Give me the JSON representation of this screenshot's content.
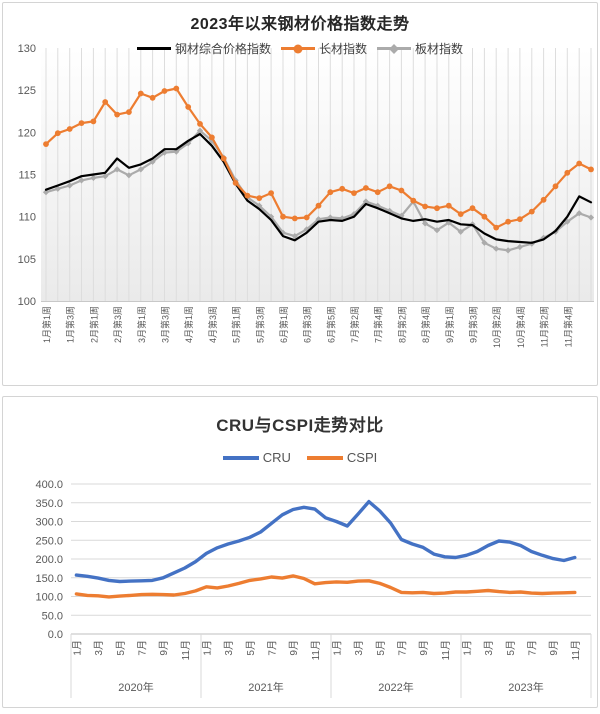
{
  "accent_colors": {
    "excel_orange": "#ED7D31",
    "excel_blue": "#4472C4",
    "series_black": "#000000",
    "series_gray": "#ABABAB",
    "axis_text": "#595959",
    "gridline": "#D9D9D9"
  },
  "chart_data": [
    {
      "type": "line",
      "title": "2023年以来钢材价格指数走势",
      "legend_position": "top",
      "grid": "vertical-only",
      "ylim": [
        100,
        130
      ],
      "yticks": [
        "130",
        "125",
        "120",
        "115",
        "110",
        "105",
        "100"
      ],
      "n_points": 47,
      "label_stride": 2,
      "categories": [
        "1月第1周",
        "1月第3周",
        "2月第1周",
        "2月第3周",
        "3月第1周",
        "3月第3周",
        "4月第1周",
        "4月第3周",
        "5月第1周",
        "5月第3周",
        "6月第1周",
        "6月第3周",
        "6月第5周",
        "7月第2周",
        "7月第4周",
        "8月第2周",
        "8月第4周",
        "9月第1周",
        "9月第3周",
        "10月第2周",
        "10月第4周",
        "11月第2周",
        "11月第4周"
      ],
      "series": [
        {
          "name": "钢材综合价格指数",
          "color": "#000000",
          "marker": "none",
          "values": [
            113.2,
            113.7,
            114.2,
            114.8,
            115.0,
            115.2,
            116.9,
            115.8,
            116.2,
            116.9,
            118.0,
            118.0,
            119.0,
            119.8,
            118.4,
            116.5,
            113.9,
            111.9,
            110.9,
            109.6,
            107.7,
            107.2,
            108.1,
            109.4,
            109.6,
            109.5,
            110.0,
            111.5,
            111.0,
            110.4,
            109.8,
            109.5,
            109.7,
            109.4,
            109.6,
            109.1,
            109.0,
            108.0,
            107.3,
            107.1,
            107.0,
            106.9,
            107.3,
            108.3,
            110.0,
            112.4,
            111.7
          ]
        },
        {
          "name": "长材指数",
          "color": "#ED7D31",
          "marker": "circle",
          "values": [
            118.6,
            119.9,
            120.4,
            121.1,
            121.3,
            123.6,
            122.1,
            122.4,
            124.6,
            124.1,
            124.9,
            125.2,
            123.0,
            121.0,
            119.4,
            116.9,
            114.0,
            112.5,
            112.2,
            112.8,
            110.0,
            109.8,
            109.9,
            111.3,
            112.9,
            113.3,
            112.8,
            113.4,
            112.9,
            113.6,
            113.1,
            111.9,
            111.2,
            111.0,
            111.3,
            110.3,
            111.0,
            110.0,
            108.7,
            109.4,
            109.7,
            110.6,
            112.0,
            113.6,
            115.2,
            116.3,
            115.6
          ]
        },
        {
          "name": "板材指数",
          "color": "#ABABAB",
          "marker": "diamond",
          "values": [
            112.9,
            113.3,
            113.7,
            114.3,
            114.6,
            114.8,
            115.6,
            114.9,
            115.6,
            116.5,
            117.6,
            117.7,
            118.7,
            120.2,
            119.0,
            117.0,
            114.3,
            112.3,
            111.3,
            110.0,
            108.1,
            107.7,
            108.5,
            109.7,
            109.9,
            109.8,
            110.3,
            111.8,
            111.3,
            110.7,
            110.1,
            111.8,
            109.2,
            108.4,
            109.3,
            108.2,
            109.1,
            106.9,
            106.2,
            106.0,
            106.4,
            106.8,
            107.5,
            108.2,
            109.4,
            110.4,
            109.9
          ]
        }
      ]
    },
    {
      "type": "line",
      "title": "CRU与CSPI走势对比",
      "legend_position": "top",
      "grid": "horizontal-only",
      "ylim": [
        0,
        400
      ],
      "yticks": [
        "400.0",
        "350.0",
        "300.0",
        "250.0",
        "200.0",
        "150.0",
        "100.0",
        "50.0",
        "0.0"
      ],
      "n_points": 47,
      "x_month_labels": [
        "1月",
        "3月",
        "5月",
        "7月",
        "9月",
        "11月"
      ],
      "x_year_labels": [
        "2020年",
        "2021年",
        "2022年",
        "2023年"
      ],
      "months_per_year": 12,
      "series": [
        {
          "name": "CRU",
          "color": "#4472C4",
          "marker": "none",
          "values": [
            157,
            154,
            149,
            143,
            140,
            141,
            142,
            143,
            150,
            163,
            176,
            193,
            215,
            230,
            240,
            248,
            258,
            272,
            295,
            318,
            332,
            338,
            333,
            310,
            300,
            288,
            320,
            353,
            328,
            296,
            252,
            240,
            231,
            213,
            206,
            204,
            210,
            220,
            236,
            248,
            245,
            236,
            220,
            210,
            201,
            196,
            204
          ]
        },
        {
          "name": "CSPI",
          "color": "#ED7D31",
          "marker": "none",
          "values": [
            107,
            103,
            102,
            99,
            101,
            103,
            105,
            106,
            105,
            104,
            108,
            115,
            126,
            123,
            128,
            135,
            143,
            147,
            152,
            149,
            155,
            148,
            134,
            137,
            139,
            138,
            141,
            142,
            135,
            124,
            111,
            110,
            111,
            108,
            109,
            112,
            112,
            114,
            116,
            113,
            111,
            112,
            109,
            108,
            109,
            110,
            111
          ]
        }
      ]
    }
  ]
}
